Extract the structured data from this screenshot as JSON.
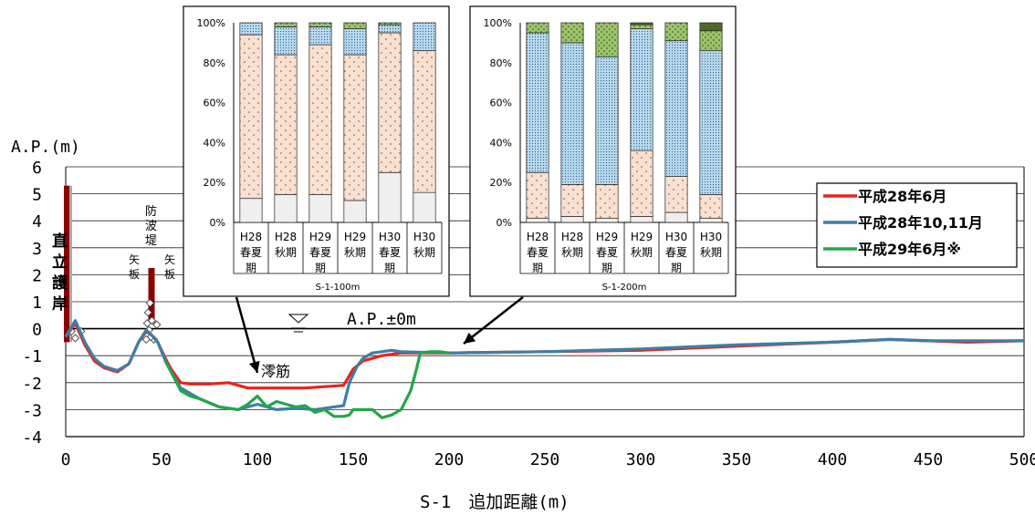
{
  "chart_data": [
    {
      "type": "line",
      "title": "",
      "xlabel": "S-1　追加距離(m)",
      "ylabel": "A.P.(m)",
      "xlim": [
        0,
        500
      ],
      "ylim": [
        -4,
        6
      ],
      "xticks": [
        "0",
        "50",
        "100",
        "150",
        "200",
        "250",
        "300",
        "350",
        "400",
        "450",
        "500"
      ],
      "yticks": [
        "6",
        "5",
        "4",
        "3",
        "2",
        "1",
        "0",
        "-1",
        "-2",
        "-3",
        "-4"
      ],
      "grid": "horizontal",
      "legend_position": "right",
      "colors": {
        "平成28年6月": "#e8231c",
        "平成28年10,11月": "#3d7fa6",
        "平成29年6月※": "#22a64a"
      },
      "series": [
        {
          "name": "平成28年6月",
          "x": [
            0,
            5,
            10,
            15,
            20,
            27,
            33,
            38,
            42,
            45,
            48,
            52,
            55,
            60,
            65,
            75,
            85,
            90,
            95,
            105,
            115,
            125,
            135,
            145,
            150,
            155,
            165,
            175,
            200,
            250,
            300,
            350,
            400,
            430,
            450,
            470,
            500
          ],
          "y": [
            -0.3,
            0.2,
            -0.6,
            -1.2,
            -1.45,
            -1.6,
            -1.3,
            -0.5,
            -0.1,
            -0.25,
            -0.5,
            -1.1,
            -1.5,
            -2.0,
            -2.05,
            -2.05,
            -2.0,
            -2.1,
            -2.2,
            -2.2,
            -2.2,
            -2.2,
            -2.15,
            -2.1,
            -1.5,
            -1.2,
            -1.0,
            -0.9,
            -0.9,
            -0.85,
            -0.8,
            -0.65,
            -0.5,
            -0.4,
            -0.45,
            -0.5,
            -0.45
          ]
        },
        {
          "name": "平成28年10,11月",
          "x": [
            0,
            5,
            10,
            15,
            20,
            27,
            33,
            38,
            42,
            45,
            48,
            52,
            55,
            60,
            65,
            70,
            80,
            90,
            100,
            110,
            120,
            130,
            140,
            145,
            148,
            152,
            155,
            160,
            165,
            170,
            175,
            200,
            250,
            300,
            350,
            400,
            430,
            450,
            500
          ],
          "y": [
            -0.3,
            0.3,
            -0.5,
            -1.1,
            -1.4,
            -1.55,
            -1.3,
            -0.5,
            -0.05,
            -0.25,
            -0.5,
            -1.2,
            -1.6,
            -2.2,
            -2.4,
            -2.6,
            -2.9,
            -3.0,
            -2.8,
            -3.0,
            -2.95,
            -3.0,
            -2.9,
            -2.85,
            -2.0,
            -1.4,
            -1.1,
            -0.9,
            -0.85,
            -0.8,
            -0.85,
            -0.9,
            -0.85,
            -0.75,
            -0.6,
            -0.5,
            -0.4,
            -0.45,
            -0.45
          ]
        },
        {
          "name": "平成29年6月※",
          "x": [
            52,
            55,
            60,
            65,
            70,
            80,
            90,
            95,
            100,
            105,
            110,
            115,
            120,
            125,
            130,
            135,
            140,
            145,
            148,
            150,
            155,
            160,
            165,
            170,
            175,
            180,
            183,
            185,
            190,
            195,
            200
          ],
          "y": [
            -1.2,
            -1.6,
            -2.3,
            -2.5,
            -2.6,
            -2.9,
            -3.0,
            -2.8,
            -2.5,
            -2.9,
            -2.7,
            -2.8,
            -2.9,
            -2.85,
            -3.1,
            -3.0,
            -3.25,
            -3.25,
            -3.2,
            -3.0,
            -3.0,
            -3.0,
            -3.3,
            -3.2,
            -3.0,
            -2.3,
            -1.5,
            -0.9,
            -0.85,
            -0.85,
            -0.9
          ]
        }
      ],
      "annotations": [
        "直立護岸",
        "防波堤",
        "矢板",
        "矢板",
        "A.P.±0m",
        "澪筋"
      ]
    },
    {
      "type": "bar",
      "stacked": true,
      "title": "S-1-100m",
      "ylim": [
        0,
        100
      ],
      "yticks": [
        "0%",
        "20%",
        "40%",
        "60%",
        "80%",
        "100%"
      ],
      "categories": [
        "H28\n春夏\n期",
        "H28\n秋期",
        "H29\n春夏\n期",
        "H29\n秋期",
        "H30\n春夏\n期",
        "H30\n秋期"
      ],
      "series": [
        {
          "fill": "#efefef",
          "values": [
            12,
            14,
            14,
            11,
            25,
            15
          ]
        },
        {
          "fill": "#fbdfcf",
          "values": [
            82,
            70,
            75,
            73,
            70,
            71
          ]
        },
        {
          "fill": "#b7d9ee",
          "values": [
            6,
            14,
            9,
            13,
            4,
            14
          ]
        },
        {
          "fill": "#9bc46c",
          "values": [
            0,
            2,
            2,
            3,
            1,
            0
          ]
        },
        {
          "fill": "#4b6a2a",
          "values": [
            0,
            0,
            0,
            0,
            0,
            0
          ]
        }
      ]
    },
    {
      "type": "bar",
      "stacked": true,
      "title": "S-1-200m",
      "ylim": [
        0,
        100
      ],
      "yticks": [
        "0%",
        "20%",
        "40%",
        "60%",
        "80%",
        "100%"
      ],
      "categories": [
        "H28\n春夏\n期",
        "H28\n秋期",
        "H29\n春夏\n期",
        "H29\n秋期",
        "H30\n春夏\n期",
        "H30\n秋期"
      ],
      "series": [
        {
          "fill": "#efefef",
          "values": [
            2,
            3,
            2,
            3,
            5,
            2
          ]
        },
        {
          "fill": "#fbdfcf",
          "values": [
            23,
            16,
            17,
            33,
            18,
            12
          ]
        },
        {
          "fill": "#b7d9ee",
          "values": [
            70,
            71,
            64,
            61,
            68,
            72
          ]
        },
        {
          "fill": "#9bc46c",
          "values": [
            5,
            10,
            17,
            2,
            9,
            10
          ]
        },
        {
          "fill": "#4b6a2a",
          "values": [
            0,
            0,
            0,
            1,
            0,
            4
          ]
        }
      ]
    }
  ]
}
